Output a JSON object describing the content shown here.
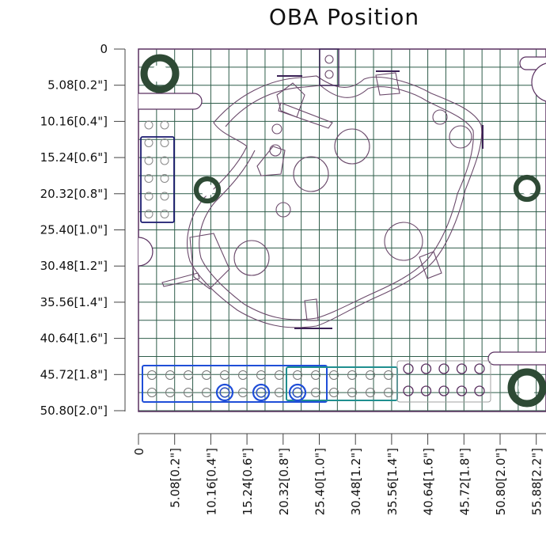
{
  "title": "OBA Position",
  "y_axis": {
    "labels": [
      "0",
      "5.08[0.2\"]",
      "10.16[0.4\"]",
      "15.24[0.6\"]",
      "20.32[0.8\"]",
      "25.40[1.0\"]",
      "30.48[1.2\"]",
      "35.56[1.4\"]",
      "40.64[1.6\"]",
      "45.72[1.8\"]",
      "50.80[2.0\"]"
    ]
  },
  "x_axis": {
    "labels": [
      "0",
      "5.08[0.2\"]",
      "10.16[0.4\"]",
      "15.24[0.6\"]",
      "20.32[0.8\"]",
      "25.40[1.0\"]",
      "30.48[1.2\"]",
      "35.56[1.4\"]",
      "40.64[1.6\"]",
      "45.72[1.8\"]",
      "50.80[2.0\"]",
      "55.88[2.2\"]"
    ]
  },
  "colors": {
    "grid": "#2f5d4a",
    "outline": "#5a3060",
    "drawing": "#6b4a6b",
    "mount_hole": "#2e4a35",
    "header_blue": "#1f4ed8",
    "header_teal": "#1f8f8f",
    "header_navy": "#1a1a6e",
    "dark_bar": "#3a2055"
  }
}
